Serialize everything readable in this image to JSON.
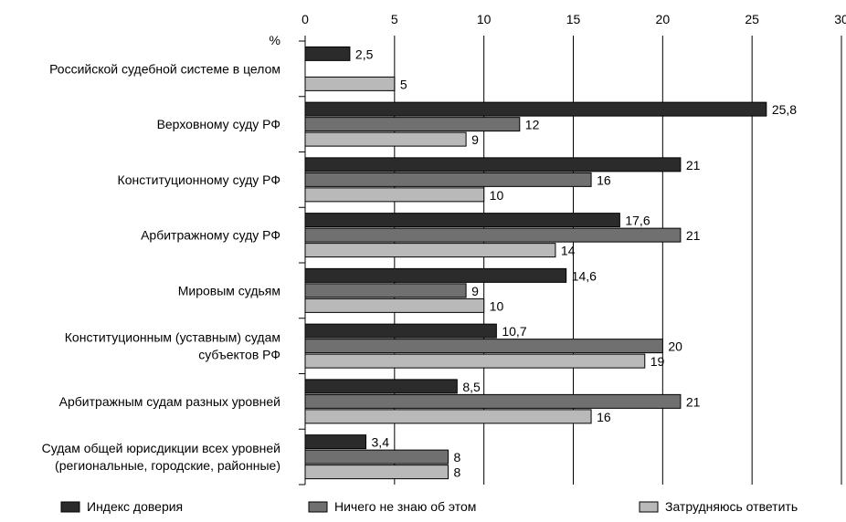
{
  "chart_data": {
    "type": "bar",
    "orientation": "horizontal",
    "unit_label": "%",
    "xlim": [
      0,
      30
    ],
    "x_ticks": [
      "0",
      "5",
      "10",
      "15",
      "20",
      "25",
      "30"
    ],
    "x_tick_values": [
      0,
      5,
      10,
      15,
      20,
      25,
      30
    ],
    "grid": true,
    "legend_position": "bottom",
    "categories": [
      [
        "Российской судебной системе в целом"
      ],
      [
        "Верховному суду РФ"
      ],
      [
        "Конституционному суду РФ"
      ],
      [
        "Арбитражному суду РФ"
      ],
      [
        "Мировым судьям"
      ],
      [
        "Конституционным (уставным) судам",
        "субъектов РФ"
      ],
      [
        "Арбитражным судам разных уровней"
      ],
      [
        "Судам общей юрисдикции всех уровней",
        "(региональные, городские, районные)"
      ]
    ],
    "series": [
      {
        "name": "Индекс доверия",
        "color": "#2b2b2b",
        "values": [
          2.5,
          25.8,
          21,
          17.6,
          14.6,
          10.7,
          8.5,
          3.4
        ],
        "labels": [
          "2,5",
          "25,8",
          "21",
          "17,6",
          "14,6",
          "10,7",
          "8,5",
          "3,4"
        ]
      },
      {
        "name": "Ничего не знаю об этом",
        "color": "#707070",
        "values": [
          null,
          12,
          16,
          21,
          9,
          20,
          21,
          8
        ],
        "labels": [
          "",
          "12",
          "16",
          "21",
          "9",
          "20",
          "21",
          "8"
        ]
      },
      {
        "name": "Затрудняюсь ответить",
        "color": "#b9b9b9",
        "values": [
          5,
          9,
          10,
          14,
          10,
          19,
          16,
          8
        ],
        "labels": [
          "5",
          "9",
          "10",
          "14",
          "10",
          "19",
          "16",
          "8"
        ]
      }
    ]
  }
}
